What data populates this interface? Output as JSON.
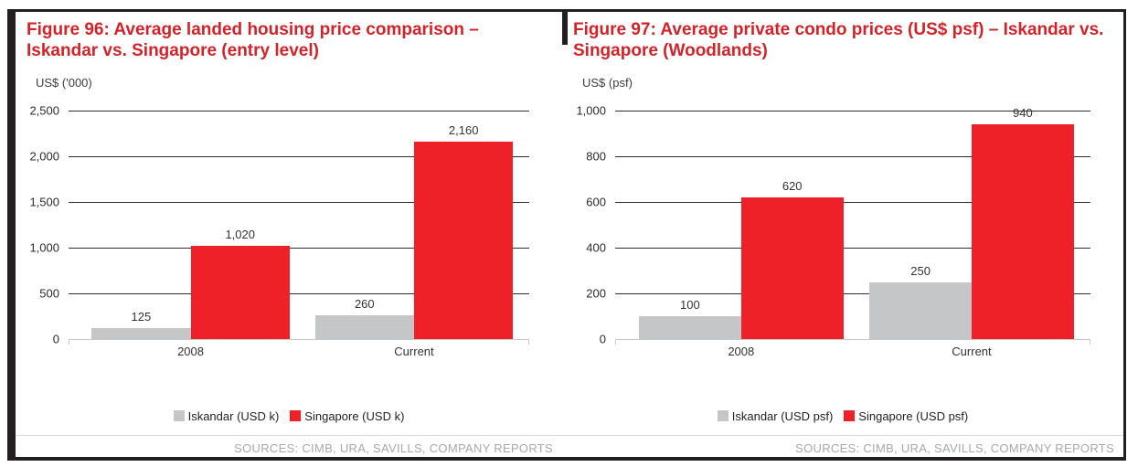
{
  "colors": {
    "frame": "#231f20",
    "title_red": "#d2232a",
    "iskandar_gray": "#c5c6c8",
    "singapore_red": "#ee2028",
    "grid_dark": "#2e2e2e",
    "axis_light": "#c6c8ca",
    "source_gray": "#a6a8ab"
  },
  "chart_data": [
    {
      "type": "bar",
      "title": "Figure 96: Average landed housing price comparison – Iskandar vs. Singapore (entry level)",
      "unit_label": "US$ ('000)",
      "categories": [
        "2008",
        "Current"
      ],
      "series": [
        {
          "name": "Iskandar (USD k)",
          "color_key": "iskandar_gray",
          "values": [
            125,
            260
          ],
          "labels": [
            "125",
            "260"
          ]
        },
        {
          "name": "Singapore (USD k)",
          "color_key": "singapore_red",
          "values": [
            1020,
            2160
          ],
          "labels": [
            "1,020",
            "2,160"
          ]
        }
      ],
      "ylim": [
        0,
        2500
      ],
      "yticks": [
        0,
        500,
        1000,
        1500,
        2000,
        2500
      ],
      "ytick_labels": [
        "0",
        "500",
        "1,000",
        "1,500",
        "2,000",
        "2,500"
      ],
      "grid": "horizontal",
      "legend_position": "bottom-center",
      "sources": "SOURCES: CIMB, URA, SAVILLS, COMPANY REPORTS"
    },
    {
      "type": "bar",
      "title": "Figure 97: Average private condo prices (US$ psf) – Iskandar vs. Singapore (Woodlands)",
      "unit_label": "US$ (psf)",
      "categories": [
        "2008",
        "Current"
      ],
      "series": [
        {
          "name": "Iskandar (USD psf)",
          "color_key": "iskandar_gray",
          "values": [
            100,
            250
          ],
          "labels": [
            "100",
            "250"
          ]
        },
        {
          "name": "Singapore (USD psf)",
          "color_key": "singapore_red",
          "values": [
            620,
            940
          ],
          "labels": [
            "620",
            "940"
          ]
        }
      ],
      "ylim": [
        0,
        1000
      ],
      "yticks": [
        0,
        200,
        400,
        600,
        800,
        1000
      ],
      "ytick_labels": [
        "0",
        "200",
        "400",
        "600",
        "800",
        "1,000"
      ],
      "grid": "horizontal",
      "legend_position": "bottom-center",
      "sources": "SOURCES: CIMB, URA, SAVILLS, COMPANY REPORTS"
    }
  ]
}
